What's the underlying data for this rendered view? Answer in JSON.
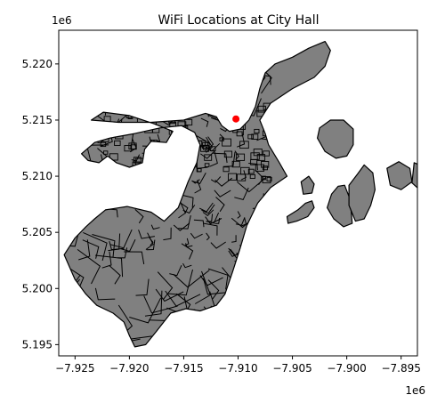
{
  "chart_data": {
    "type": "map",
    "title": "WiFi Locations at City Hall",
    "xlabel": "",
    "ylabel": "",
    "x_offset_label": "1e6",
    "y_offset_label": "1e6",
    "xlim": [
      -7.9265,
      -7.8935
    ],
    "ylim": [
      5.194,
      5.223
    ],
    "x_ticks": [
      -7.925,
      -7.92,
      -7.915,
      -7.91,
      -7.905,
      -7.9,
      -7.895
    ],
    "x_tick_labels": [
      "−7.925",
      "−7.920",
      "−7.915",
      "−7.910",
      "−7.905",
      "−7.900",
      "−7.895"
    ],
    "y_ticks": [
      5.195,
      5.2,
      5.205,
      5.21,
      5.215,
      5.22
    ],
    "y_tick_labels": [
      "5.195",
      "5.200",
      "5.205",
      "5.210",
      "5.215",
      "5.220"
    ],
    "grid": false,
    "polygon_fill": "#808080",
    "polygon_edge": "#000000",
    "marker_color": "#ff0000",
    "points": [
      {
        "x": -7.9102,
        "y": 5.2151
      }
    ],
    "regions": [
      {
        "name": "mainland",
        "coords": [
          [
            -7.9202,
            5.2073
          ],
          [
            -7.918,
            5.2068
          ],
          [
            -7.9168,
            5.206
          ],
          [
            -7.9155,
            5.2072
          ],
          [
            -7.9146,
            5.2095
          ],
          [
            -7.9138,
            5.2112
          ],
          [
            -7.9135,
            5.2128
          ],
          [
            -7.914,
            5.2139
          ],
          [
            -7.9152,
            5.2145
          ],
          [
            -7.9172,
            5.2143
          ],
          [
            -7.9195,
            5.2138
          ],
          [
            -7.9218,
            5.2134
          ],
          [
            -7.9232,
            5.213
          ],
          [
            -7.9244,
            5.212
          ],
          [
            -7.9238,
            5.2114
          ],
          [
            -7.9228,
            5.2112
          ],
          [
            -7.922,
            5.2118
          ],
          [
            -7.9212,
            5.2112
          ],
          [
            -7.92,
            5.2108
          ],
          [
            -7.9188,
            5.2112
          ],
          [
            -7.9186,
            5.2124
          ],
          [
            -7.918,
            5.2131
          ],
          [
            -7.9166,
            5.213
          ],
          [
            -7.916,
            5.214
          ],
          [
            -7.9178,
            5.2147
          ],
          [
            -7.92,
            5.2154
          ],
          [
            -7.9224,
            5.2157
          ],
          [
            -7.9235,
            5.215
          ],
          [
            -7.921,
            5.2148
          ],
          [
            -7.918,
            5.2148
          ],
          [
            -7.915,
            5.215
          ],
          [
            -7.913,
            5.2156
          ],
          [
            -7.912,
            5.2153
          ],
          [
            -7.9115,
            5.2145
          ],
          [
            -7.9108,
            5.214
          ],
          [
            -7.9098,
            5.2142
          ],
          [
            -7.909,
            5.215
          ],
          [
            -7.9084,
            5.2162
          ],
          [
            -7.908,
            5.2178
          ],
          [
            -7.9075,
            5.2192
          ],
          [
            -7.9066,
            5.22
          ],
          [
            -7.905,
            5.2206
          ],
          [
            -7.9035,
            5.2214
          ],
          [
            -7.902,
            5.222
          ],
          [
            -7.9015,
            5.2212
          ],
          [
            -7.902,
            5.2198
          ],
          [
            -7.903,
            5.2188
          ],
          [
            -7.905,
            5.2178
          ],
          [
            -7.907,
            5.2165
          ],
          [
            -7.908,
            5.215
          ],
          [
            -7.9075,
            5.2138
          ],
          [
            -7.9072,
            5.2128
          ],
          [
            -7.9062,
            5.2112
          ],
          [
            -7.9055,
            5.21
          ],
          [
            -7.907,
            5.209
          ],
          [
            -7.9082,
            5.2076
          ],
          [
            -7.9092,
            5.2056
          ],
          [
            -7.9098,
            5.2036
          ],
          [
            -7.9105,
            5.2015
          ],
          [
            -7.9112,
            5.1995
          ],
          [
            -7.912,
            5.1985
          ],
          [
            -7.9135,
            5.198
          ],
          [
            -7.9148,
            5.1982
          ],
          [
            -7.9162,
            5.1978
          ],
          [
            -7.9175,
            5.1962
          ],
          [
            -7.9185,
            5.195
          ],
          [
            -7.9195,
            5.1948
          ],
          [
            -7.92,
            5.1958
          ],
          [
            -7.9205,
            5.197
          ],
          [
            -7.9215,
            5.1978
          ],
          [
            -7.923,
            5.1985
          ],
          [
            -7.924,
            5.1995
          ],
          [
            -7.925,
            5.2008
          ],
          [
            -7.926,
            5.203
          ],
          [
            -7.925,
            5.2045
          ],
          [
            -7.924,
            5.2055
          ],
          [
            -7.9232,
            5.2062
          ],
          [
            -7.9222,
            5.207
          ]
        ]
      },
      {
        "name": "island-1",
        "coords": [
          [
            -7.9025,
            5.2143
          ],
          [
            -7.9015,
            5.215
          ],
          [
            -7.9003,
            5.215
          ],
          [
            -7.8994,
            5.2142
          ],
          [
            -7.8994,
            5.2128
          ],
          [
            -7.9,
            5.2118
          ],
          [
            -7.901,
            5.2116
          ],
          [
            -7.902,
            5.2122
          ],
          [
            -7.9027,
            5.2134
          ]
        ]
      },
      {
        "name": "island-2",
        "coords": [
          [
            -7.9002,
            5.2092
          ],
          [
            -7.8998,
            5.2082
          ],
          [
            -7.8996,
            5.207
          ],
          [
            -7.8995,
            5.2058
          ],
          [
            -7.9003,
            5.2055
          ],
          [
            -7.9012,
            5.2062
          ],
          [
            -7.9018,
            5.2072
          ],
          [
            -7.9014,
            5.2084
          ],
          [
            -7.9008,
            5.2091
          ]
        ]
      },
      {
        "name": "island-3",
        "coords": [
          [
            -7.9055,
            5.2064
          ],
          [
            -7.9045,
            5.207
          ],
          [
            -7.9038,
            5.2076
          ],
          [
            -7.9032,
            5.2078
          ],
          [
            -7.903,
            5.2072
          ],
          [
            -7.9036,
            5.2064
          ],
          [
            -7.9046,
            5.206
          ],
          [
            -7.9054,
            5.2058
          ]
        ]
      },
      {
        "name": "island-4",
        "coords": [
          [
            -7.9042,
            5.2095
          ],
          [
            -7.9035,
            5.21
          ],
          [
            -7.903,
            5.2093
          ],
          [
            -7.9032,
            5.2085
          ],
          [
            -7.904,
            5.2084
          ]
        ]
      },
      {
        "name": "island-5",
        "coords": [
          [
            -7.8998,
            5.2092
          ],
          [
            -7.899,
            5.2102
          ],
          [
            -7.8984,
            5.211
          ],
          [
            -7.8976,
            5.2103
          ],
          [
            -7.8974,
            5.2088
          ],
          [
            -7.8978,
            5.2074
          ],
          [
            -7.8984,
            5.2062
          ],
          [
            -7.8992,
            5.206
          ],
          [
            -7.8998,
            5.2074
          ]
        ]
      },
      {
        "name": "island-6",
        "coords": [
          [
            -7.8963,
            5.2107
          ],
          [
            -7.8952,
            5.2113
          ],
          [
            -7.8942,
            5.2107
          ],
          [
            -7.894,
            5.2095
          ],
          [
            -7.895,
            5.2088
          ],
          [
            -7.896,
            5.2092
          ]
        ]
      },
      {
        "name": "island-7",
        "coords": [
          [
            -7.8938,
            5.2112
          ],
          [
            -7.8928,
            5.2108
          ],
          [
            -7.8928,
            5.2096
          ],
          [
            -7.8933,
            5.2088
          ],
          [
            -7.894,
            5.2094
          ]
        ]
      }
    ]
  }
}
